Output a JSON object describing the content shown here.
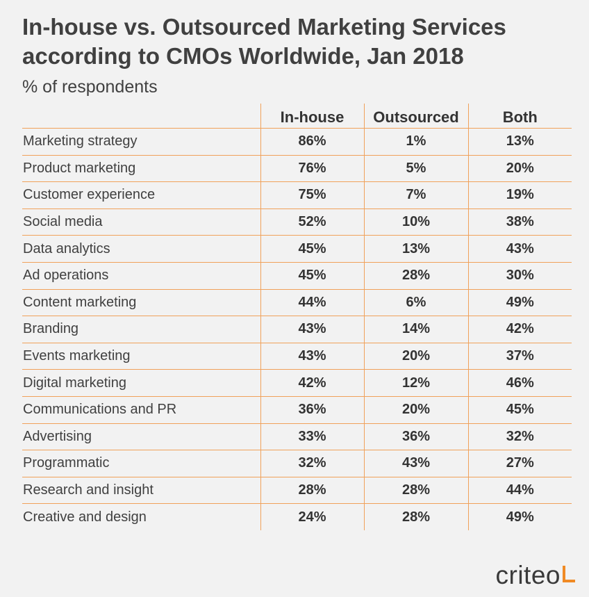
{
  "chart_data": {
    "type": "table",
    "title_line1": "In-house vs. Outsourced Marketing Services",
    "title_line2": "according to CMOs Worldwide, Jan 2018",
    "subtitle": "% of respondents",
    "columns": [
      "In-house",
      "Outsourced",
      "Both"
    ],
    "rows": [
      {
        "label": "Marketing strategy",
        "values": [
          "86%",
          "1%",
          "13%"
        ]
      },
      {
        "label": "Product marketing",
        "values": [
          "76%",
          "5%",
          "20%"
        ]
      },
      {
        "label": "Customer experience",
        "values": [
          "75%",
          "7%",
          "19%"
        ]
      },
      {
        "label": "Social media",
        "values": [
          "52%",
          "10%",
          "38%"
        ]
      },
      {
        "label": "Data analytics",
        "values": [
          "45%",
          "13%",
          "43%"
        ]
      },
      {
        "label": "Ad operations",
        "values": [
          "45%",
          "28%",
          "30%"
        ]
      },
      {
        "label": "Content marketing",
        "values": [
          "44%",
          "6%",
          "49%"
        ]
      },
      {
        "label": "Branding",
        "values": [
          "43%",
          "14%",
          "42%"
        ]
      },
      {
        "label": "Events marketing",
        "values": [
          "43%",
          "20%",
          "37%"
        ]
      },
      {
        "label": "Digital marketing",
        "values": [
          "42%",
          "12%",
          "46%"
        ]
      },
      {
        "label": "Communications and PR",
        "values": [
          "36%",
          "20%",
          "45%"
        ]
      },
      {
        "label": "Advertising",
        "values": [
          "33%",
          "36%",
          "32%"
        ]
      },
      {
        "label": "Programmatic",
        "values": [
          "32%",
          "43%",
          "27%"
        ]
      },
      {
        "label": "Research and insight",
        "values": [
          "28%",
          "28%",
          "44%"
        ]
      },
      {
        "label": "Creative and design",
        "values": [
          "24%",
          "28%",
          "49%"
        ]
      }
    ]
  },
  "brand": {
    "name": "criteo",
    "accent_color": "#f08a24"
  },
  "colors": {
    "background": "#f2f2f2",
    "rule": "#f0a15a",
    "text": "#404040"
  }
}
